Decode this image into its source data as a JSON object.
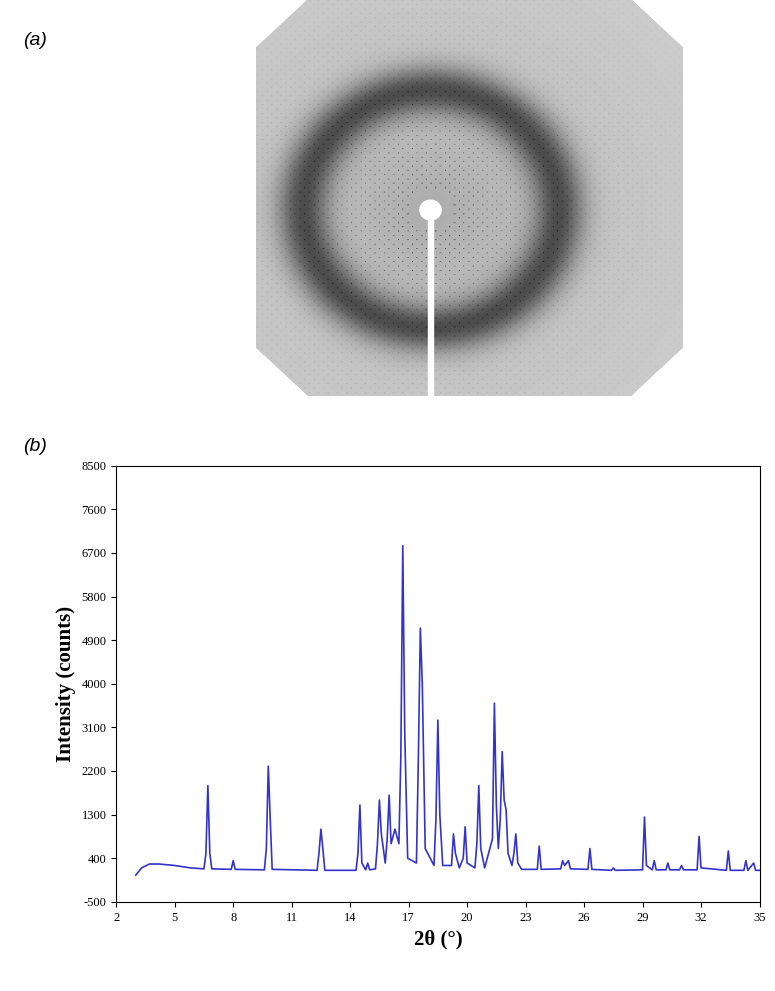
{
  "chart_data": [
    {
      "type": "image",
      "title": "(a)"
    },
    {
      "type": "line",
      "title": "(b)",
      "x_label": "2θ (°)",
      "y_label": "Intensity (counts)",
      "color": "#3333cc",
      "grid": false,
      "xlim": [
        2,
        35
      ],
      "xticks": [
        2,
        5,
        8,
        11,
        14,
        17,
        20,
        23,
        26,
        29,
        32,
        35
      ],
      "ylim": [
        -500,
        8500
      ],
      "yticks": [
        -500,
        400,
        1300,
        2200,
        3100,
        4000,
        4900,
        5800,
        6700,
        7600,
        8500
      ],
      "x": [
        3.0,
        3.3,
        3.7,
        4.2,
        5.0,
        5.8,
        6.5,
        6.6,
        6.7,
        6.8,
        6.9,
        7.9,
        8.0,
        8.1,
        9.6,
        9.7,
        9.8,
        9.9,
        10.0,
        12.3,
        12.4,
        12.5,
        12.6,
        12.7,
        14.3,
        14.4,
        14.5,
        14.6,
        14.8,
        14.9,
        15.0,
        15.3,
        15.4,
        15.5,
        15.6,
        15.8,
        15.9,
        16.0,
        16.1,
        16.3,
        16.5,
        16.6,
        16.7,
        16.8,
        16.95,
        17.4,
        17.5,
        17.6,
        17.7,
        17.85,
        18.3,
        18.4,
        18.5,
        18.6,
        18.75,
        19.2,
        19.3,
        19.4,
        19.6,
        19.8,
        19.9,
        20.0,
        20.4,
        20.5,
        20.6,
        20.7,
        20.9,
        21.3,
        21.4,
        21.5,
        21.6,
        21.7,
        21.8,
        21.9,
        22.0,
        22.1,
        22.3,
        22.4,
        22.5,
        22.6,
        22.8,
        23.6,
        23.7,
        23.8,
        24.8,
        24.9,
        25.0,
        25.2,
        25.3,
        26.2,
        26.3,
        26.4,
        27.4,
        27.5,
        27.6,
        29.0,
        29.1,
        29.2,
        29.5,
        29.6,
        29.7,
        30.2,
        30.3,
        30.4,
        30.9,
        31.0,
        31.1,
        31.8,
        31.9,
        32.0,
        33.3,
        33.4,
        33.5,
        34.2,
        34.3,
        34.4,
        34.7,
        34.8,
        35.0
      ],
      "values": [
        50,
        200,
        280,
        280,
        250,
        200,
        180,
        500,
        1900,
        500,
        180,
        170,
        350,
        170,
        160,
        600,
        2300,
        1200,
        170,
        150,
        500,
        1000,
        600,
        150,
        150,
        500,
        1500,
        300,
        160,
        300,
        160,
        180,
        700,
        1600,
        900,
        300,
        800,
        1700,
        700,
        1000,
        700,
        2500,
        6850,
        3000,
        400,
        300,
        2500,
        5150,
        4000,
        600,
        250,
        1200,
        3250,
        1300,
        250,
        250,
        900,
        500,
        200,
        400,
        1050,
        300,
        200,
        700,
        1900,
        600,
        200,
        800,
        3600,
        1500,
        600,
        1200,
        2600,
        1600,
        1400,
        500,
        250,
        500,
        900,
        300,
        170,
        170,
        650,
        170,
        180,
        350,
        250,
        350,
        180,
        170,
        600,
        170,
        150,
        200,
        150,
        160,
        1250,
        250,
        160,
        350,
        160,
        160,
        300,
        160,
        160,
        250,
        160,
        160,
        850,
        200,
        150,
        550,
        150,
        150,
        350,
        150,
        300,
        150,
        150
      ]
    }
  ]
}
